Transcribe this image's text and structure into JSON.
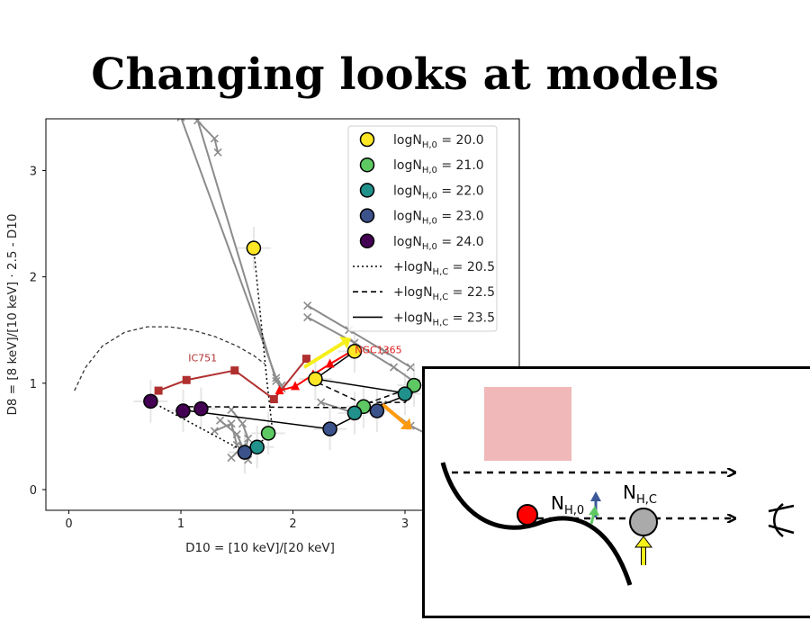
{
  "slide": {
    "title": "Changing looks at models"
  },
  "chart_data": {
    "type": "scatter",
    "xlabel": "D10 = [10 keV]/[20 keV]",
    "ylabel": "D8 = [8 keV]/[10 keV] · 2.5 - D10",
    "xlim": [
      -0.2,
      4.0
    ],
    "ylim": [
      -0.2,
      3.5
    ],
    "xticks": [
      "0",
      "1",
      "2",
      "3"
    ],
    "yticks": [
      "0",
      "1",
      "2",
      "3"
    ],
    "legend_position": "upper-right",
    "legend": [
      {
        "kind": "marker",
        "label": "logN",
        "sub": "H,0",
        "eq": " = 20.0",
        "color": "#fde725"
      },
      {
        "kind": "marker",
        "label": "logN",
        "sub": "H,0",
        "eq": " = 21.0",
        "color": "#5ec962"
      },
      {
        "kind": "marker",
        "label": "logN",
        "sub": "H,0",
        "eq": " = 22.0",
        "color": "#21918c"
      },
      {
        "kind": "marker",
        "label": "logN",
        "sub": "H,0",
        "eq": " = 23.0",
        "color": "#3b528b"
      },
      {
        "kind": "marker",
        "label": "logN",
        "sub": "H,0",
        "eq": " = 24.0",
        "color": "#440154"
      },
      {
        "kind": "line",
        "dash": "dotted",
        "label": "+logN",
        "sub": "H,C",
        "eq": " = 20.5"
      },
      {
        "kind": "line",
        "dash": "dashed",
        "label": "+logN",
        "sub": "H,C",
        "eq": " = 22.5"
      },
      {
        "kind": "line",
        "dash": "solid",
        "label": "+logN",
        "sub": "H,C",
        "eq": " = 23.5"
      }
    ],
    "series": [
      {
        "style": "dotted",
        "x": [
          1.65,
          1.77,
          1.82,
          1.58,
          0.73
        ],
        "y": [
          2.27,
          1.0,
          0.53,
          0.35,
          0.83
        ]
      },
      {
        "style": "dashed",
        "x": [
          2.15,
          2.6,
          3.0,
          3.12,
          2.55,
          1.05
        ],
        "y": [
          1.04,
          0.82,
          0.82,
          0.98,
          0.77,
          0.78
        ]
      },
      {
        "style": "solid",
        "x": [
          2.55,
          2.2,
          3.05,
          2.65,
          2.33,
          1.0
        ],
        "y": [
          1.3,
          1.04,
          0.9,
          0.74,
          0.57,
          0.75
        ]
      }
    ],
    "points": [
      {
        "x": 1.65,
        "y": 2.27,
        "color": "#fde725"
      },
      {
        "x": 2.55,
        "y": 1.3,
        "color": "#fde725"
      },
      {
        "x": 2.2,
        "y": 1.04,
        "color": "#fde725"
      },
      {
        "x": 1.78,
        "y": 0.53,
        "color": "#5ec962"
      },
      {
        "x": 2.63,
        "y": 0.78,
        "color": "#5ec962"
      },
      {
        "x": 3.08,
        "y": 0.98,
        "color": "#5ec962"
      },
      {
        "x": 1.68,
        "y": 0.4,
        "color": "#21918c"
      },
      {
        "x": 2.55,
        "y": 0.72,
        "color": "#21918c"
      },
      {
        "x": 3.0,
        "y": 0.9,
        "color": "#21918c"
      },
      {
        "x": 1.57,
        "y": 0.35,
        "color": "#3b528b"
      },
      {
        "x": 2.33,
        "y": 0.57,
        "color": "#3b528b"
      },
      {
        "x": 2.75,
        "y": 0.74,
        "color": "#3b528b"
      },
      {
        "x": 0.73,
        "y": 0.83,
        "color": "#440154"
      },
      {
        "x": 1.02,
        "y": 0.74,
        "color": "#440154"
      },
      {
        "x": 1.18,
        "y": 0.76,
        "color": "#440154"
      }
    ],
    "sources": [
      {
        "name": "IC751",
        "color": "#b03030",
        "x": [
          0.8,
          1.05,
          1.48,
          1.83,
          2.12
        ],
        "y": [
          0.93,
          1.03,
          1.12,
          0.85,
          1.23
        ]
      },
      {
        "name": "NGC1365",
        "color": "#ff0000",
        "x": [
          1.88,
          2.02,
          2.18,
          2.33,
          2.52
        ],
        "y": [
          0.93,
          0.97,
          1.08,
          1.18,
          1.3
        ]
      }
    ],
    "model_curve": {
      "x": [
        0.05,
        0.15,
        0.3,
        0.5,
        0.7,
        0.9,
        1.1,
        1.3,
        1.5,
        1.65,
        1.75
      ],
      "y": [
        0.93,
        1.15,
        1.35,
        1.48,
        1.53,
        1.53,
        1.5,
        1.44,
        1.35,
        1.26,
        1.18
      ]
    },
    "grey_tracks": [
      {
        "x": [
          1.0,
          1.85,
          1.9
        ],
        "y": [
          3.5,
          1.05,
          0.98
        ]
      },
      {
        "x": [
          1.15,
          1.85,
          1.9
        ],
        "y": [
          3.47,
          1.02,
          0.95
        ]
      },
      {
        "x": [
          1.1,
          1.3,
          1.33
        ],
        "y": [
          3.52,
          3.3,
          3.17
        ]
      },
      {
        "x": [
          2.13,
          2.5,
          2.82,
          3.05
        ],
        "y": [
          1.73,
          1.5,
          1.3,
          1.15
        ]
      },
      {
        "x": [
          2.13,
          2.55,
          2.9,
          3.1
        ],
        "y": [
          1.62,
          1.38,
          1.15,
          1.0
        ]
      },
      {
        "x": [
          1.45,
          1.55,
          1.6,
          1.57
        ],
        "y": [
          0.75,
          0.62,
          0.48,
          0.35
        ]
      },
      {
        "x": [
          1.35,
          1.5,
          1.55,
          1.45
        ],
        "y": [
          0.65,
          0.52,
          0.4,
          0.3
        ]
      },
      {
        "x": [
          1.3,
          1.45,
          1.5,
          1.6
        ],
        "y": [
          0.55,
          0.62,
          0.42,
          0.28
        ]
      },
      {
        "x": [
          2.25,
          2.55,
          2.8,
          3.05,
          3.2
        ],
        "y": [
          0.82,
          0.72,
          0.8,
          0.6,
          0.52
        ]
      }
    ],
    "arrows": [
      {
        "color": "#f5ef1a",
        "x": [
          2.1,
          2.45
        ],
        "y": [
          1.15,
          1.38
        ]
      },
      {
        "color": "#ff9a10",
        "x": [
          2.8,
          3.0
        ],
        "y": [
          0.8,
          0.62
        ]
      }
    ]
  },
  "inset": {
    "labels": {
      "n_h0": "N",
      "n_h0_sub": "H,0",
      "n_hc": "N",
      "n_hc_sub": "H,C"
    },
    "colors": {
      "pink_box": "#f0b8b8",
      "source_dot": "#ff0000",
      "cloud": "#aaaaaa",
      "arrow_blue": "#3b5998",
      "arrow_green": "#5ec962",
      "arrow_yellow": "#f5ef1a"
    }
  }
}
